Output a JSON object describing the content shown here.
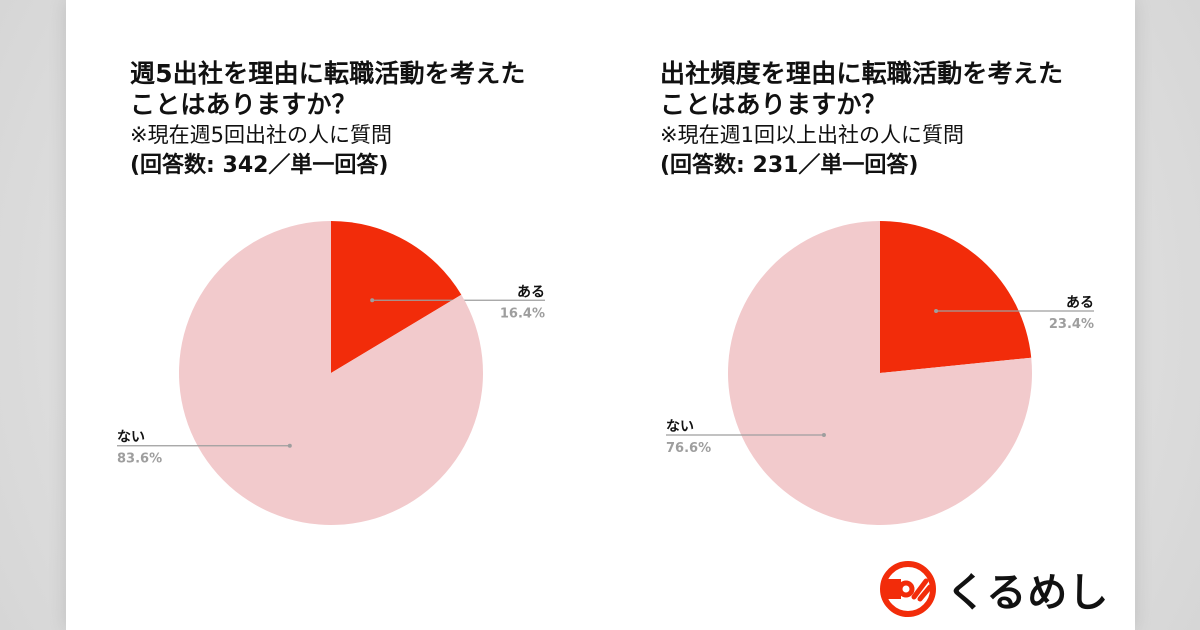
{
  "colors": {
    "yes": "#f22c0a",
    "no": "#f2cacc",
    "leader": "#9e9e9e",
    "logo": "#f22c0a"
  },
  "logo": {
    "text": "くるめし",
    "icon": "kurumeshi-logo-icon"
  },
  "chart_data": [
    {
      "type": "pie",
      "title_lines": [
        "週5出社を理由に転職活動を考えた",
        "ことはありますか？"
      ],
      "note": "※現在週5回出社の人に質問",
      "count": "(回答数: 342／単一回答)",
      "slices": [
        {
          "label": "ある",
          "value": 16.4,
          "display": "16.4%"
        },
        {
          "label": "ない",
          "value": 83.6,
          "display": "83.6%"
        }
      ]
    },
    {
      "type": "pie",
      "title_lines": [
        "出社頻度を理由に転職活動を考えた",
        "ことはありますか？"
      ],
      "note": "※現在週1回以上出社の人に質問",
      "count": "(回答数: 231／単一回答)",
      "slices": [
        {
          "label": "ある",
          "value": 23.4,
          "display": "23.4%"
        },
        {
          "label": "ない",
          "value": 76.6,
          "display": "76.6%"
        }
      ]
    }
  ]
}
